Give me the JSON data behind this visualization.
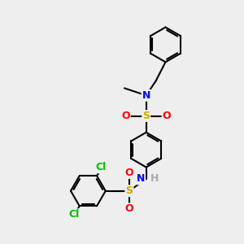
{
  "bg_color": "#eeeeee",
  "bond_color": "#000000",
  "bond_width": 1.5,
  "atom_colors": {
    "N": "#0000ff",
    "S": "#ccaa00",
    "O": "#ff0000",
    "Cl": "#00bb00",
    "H": "#aaaaaa",
    "C": "#000000"
  },
  "font_size": 9,
  "bold_atoms": true
}
